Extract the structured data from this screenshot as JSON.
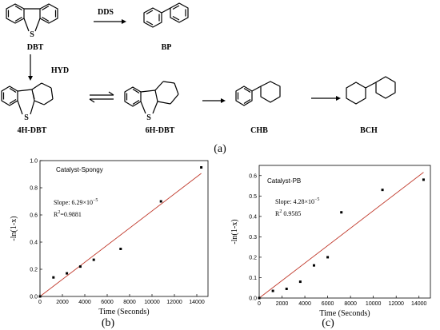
{
  "scheme": {
    "molecules": {
      "dbt": "DBT",
      "bp": "BP",
      "h4dbt": "4H-DBT",
      "h6dbt": "6H-DBT",
      "chb": "CHB",
      "bch": "BCH"
    },
    "pathways": {
      "dds": "DDS",
      "hyd": "HYD"
    },
    "sulfur": "S",
    "panel": "(a)"
  },
  "chart_data": [
    {
      "type": "scatter",
      "panel": "(b)",
      "title": "Catalyst-Spongy",
      "xlabel": "Time (Seconds)",
      "ylabel": "-ln(1-x)",
      "xlim": [
        0,
        15000
      ],
      "ylim": [
        0,
        1.0
      ],
      "xticks": [
        0,
        2000,
        4000,
        6000,
        8000,
        10000,
        12000,
        14000
      ],
      "yticks": [
        0.0,
        0.2,
        0.4,
        0.6,
        0.8,
        1.0
      ],
      "xtick_labels": [
        "0",
        "2000",
        "4000",
        "6000",
        "8000",
        "10000",
        "12000",
        "14000"
      ],
      "ytick_labels": [
        "0.0",
        "0.2",
        "0.4",
        "0.6",
        "0.8",
        "1.0"
      ],
      "points": [
        [
          0,
          0.0
        ],
        [
          1200,
          0.14
        ],
        [
          2400,
          0.17
        ],
        [
          3600,
          0.22
        ],
        [
          4800,
          0.27
        ],
        [
          7200,
          0.35
        ],
        [
          10800,
          0.7
        ],
        [
          14400,
          0.95
        ]
      ],
      "fit": {
        "slope": 6.29e-05,
        "intercept": 0,
        "color": "#c0392b"
      },
      "annotations": {
        "slope_prefix": "Slope: ",
        "slope_value": "6.29×10",
        "slope_exp": "−5",
        "r2_prefix": "R",
        "r2_sup": "2",
        "r2_value": "=0.9881"
      }
    },
    {
      "type": "scatter",
      "panel": "(c)",
      "title": "Catalyst-PB",
      "xlabel": "Time (Seconds)",
      "ylabel": "-ln(1-x)",
      "xlim": [
        0,
        15000
      ],
      "ylim": [
        0,
        0.65
      ],
      "xticks": [
        0,
        2000,
        4000,
        6000,
        8000,
        10000,
        12000,
        14000
      ],
      "yticks": [
        0.0,
        0.1,
        0.2,
        0.3,
        0.4,
        0.5,
        0.6
      ],
      "xtick_labels": [
        "0",
        "2000",
        "4000",
        "6000",
        "8000",
        "10000",
        "12000",
        "14000"
      ],
      "ytick_labels": [
        "0.0",
        "0.1",
        "0.2",
        "0.3",
        "0.4",
        "0.5",
        "0.6"
      ],
      "points": [
        [
          0,
          0.0
        ],
        [
          1200,
          0.035
        ],
        [
          2400,
          0.045
        ],
        [
          3600,
          0.08
        ],
        [
          4800,
          0.16
        ],
        [
          6000,
          0.2
        ],
        [
          7200,
          0.42
        ],
        [
          10800,
          0.53
        ],
        [
          14400,
          0.58
        ]
      ],
      "fit": {
        "slope": 4.28e-05,
        "intercept": 0,
        "color": "#c0392b"
      },
      "annotations": {
        "slope_prefix": "Slope: ",
        "slope_value": "4.28×10",
        "slope_exp": "−5",
        "r2_prefix": "R",
        "r2_sup": "2",
        "r2_value": " 0.9585"
      }
    }
  ]
}
